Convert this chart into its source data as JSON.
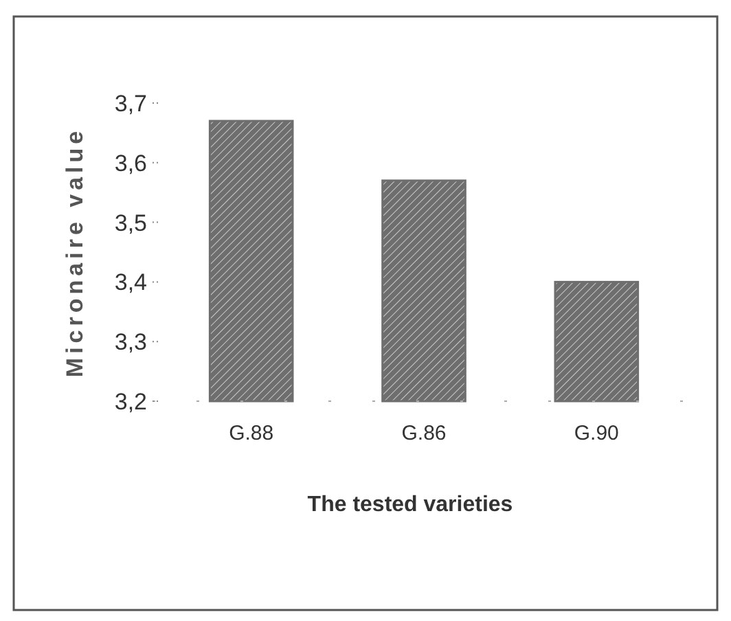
{
  "chart_data": {
    "type": "bar",
    "xlabel": "The tested varieties",
    "ylabel": "Micronaire value",
    "categories": [
      "G.88",
      "G.86",
      "G.90"
    ],
    "values": [
      3.67,
      3.57,
      3.4
    ],
    "color": "#6e6e6e",
    "ylim": [
      3.2,
      3.7
    ],
    "yticks": [
      {
        "value": 3.2,
        "label": "3,2"
      },
      {
        "value": 3.3,
        "label": "3,3"
      },
      {
        "value": 3.4,
        "label": "3,4"
      },
      {
        "value": 3.5,
        "label": "3,5"
      },
      {
        "value": 3.6,
        "label": "3,6"
      },
      {
        "value": 3.7,
        "label": "3,7"
      }
    ],
    "grid": false
  }
}
